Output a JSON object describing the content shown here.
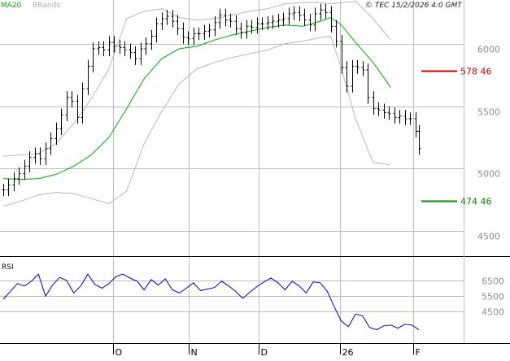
{
  "header": {
    "legend": [
      {
        "label": "MA20",
        "color": "#00aa00"
      },
      {
        "label": "BBands",
        "color": "#aaaaaa"
      }
    ],
    "timestamp": "© TEC 15/2/2026 4:0 GMT"
  },
  "colors": {
    "background": "#ffffff",
    "grid": "#bdbdbd",
    "price_bar": "#000000",
    "ma20": "#00aa00",
    "bbands": "#b8b8b8",
    "rsi": "#0000cc",
    "resistance": "#cc0000",
    "support": "#008800"
  },
  "chart_data": [
    {
      "type": "ohlc",
      "name": "price",
      "ylim": [
        4300,
        6350
      ],
      "ytick_labels": [
        "4500",
        "5000",
        "5500",
        "6000"
      ],
      "x_labels": [
        "O",
        "N",
        "D",
        "26",
        "F"
      ],
      "ma20": [
        [
          0,
          4920
        ],
        [
          10,
          4915
        ],
        [
          20,
          4920
        ],
        [
          30,
          4955
        ],
        [
          40,
          5020
        ],
        [
          50,
          5110
        ],
        [
          60,
          5250
        ],
        [
          70,
          5480
        ],
        [
          80,
          5720
        ],
        [
          90,
          5880
        ],
        [
          100,
          5960
        ],
        [
          110,
          5980
        ],
        [
          120,
          6030
        ],
        [
          130,
          6070
        ],
        [
          140,
          6100
        ],
        [
          150,
          6130
        ],
        [
          160,
          6150
        ],
        [
          170,
          6140
        ],
        [
          180,
          6180
        ],
        [
          186,
          6210
        ],
        [
          192,
          6150
        ],
        [
          200,
          6010
        ],
        [
          210,
          5850
        ],
        [
          220,
          5650
        ]
      ],
      "bb_upper": [
        [
          0,
          5100
        ],
        [
          10,
          5110
        ],
        [
          20,
          5120
        ],
        [
          30,
          5200
        ],
        [
          40,
          5360
        ],
        [
          50,
          5560
        ],
        [
          60,
          5800
        ],
        [
          70,
          6200
        ],
        [
          80,
          6260
        ],
        [
          90,
          6280
        ],
        [
          100,
          6210
        ],
        [
          110,
          6190
        ],
        [
          120,
          6200
        ],
        [
          130,
          6230
        ],
        [
          140,
          6260
        ],
        [
          150,
          6280
        ],
        [
          160,
          6320
        ],
        [
          170,
          6330
        ],
        [
          180,
          6330
        ],
        [
          186,
          6320
        ],
        [
          192,
          6330
        ],
        [
          200,
          6340
        ],
        [
          210,
          6200
        ],
        [
          220,
          6030
        ]
      ],
      "bb_lower": [
        [
          0,
          4700
        ],
        [
          10,
          4740
        ],
        [
          20,
          4790
        ],
        [
          30,
          4810
        ],
        [
          40,
          4800
        ],
        [
          50,
          4760
        ],
        [
          60,
          4720
        ],
        [
          70,
          4820
        ],
        [
          80,
          5200
        ],
        [
          90,
          5460
        ],
        [
          100,
          5680
        ],
        [
          110,
          5800
        ],
        [
          120,
          5850
        ],
        [
          130,
          5890
        ],
        [
          140,
          5920
        ],
        [
          150,
          5950
        ],
        [
          160,
          6000
        ],
        [
          170,
          6020
        ],
        [
          180,
          6050
        ],
        [
          186,
          6060
        ],
        [
          192,
          5800
        ],
        [
          200,
          5400
        ],
        [
          210,
          5050
        ],
        [
          220,
          5030
        ]
      ],
      "price": [
        [
          0,
          4830
        ],
        [
          3,
          4870
        ],
        [
          6,
          4920
        ],
        [
          9,
          4960
        ],
        [
          12,
          5020
        ],
        [
          15,
          5090
        ],
        [
          18,
          5120
        ],
        [
          21,
          5080
        ],
        [
          24,
          5160
        ],
        [
          27,
          5240
        ],
        [
          30,
          5320
        ],
        [
          33,
          5430
        ],
        [
          36,
          5570
        ],
        [
          39,
          5540
        ],
        [
          42,
          5410
        ],
        [
          45,
          5640
        ],
        [
          48,
          5820
        ],
        [
          51,
          5960
        ],
        [
          54,
          5970
        ],
        [
          57,
          5950
        ],
        [
          60,
          6010
        ],
        [
          63,
          5980
        ],
        [
          66,
          5970
        ],
        [
          69,
          5950
        ],
        [
          72,
          5930
        ],
        [
          75,
          5880
        ],
        [
          78,
          5960
        ],
        [
          81,
          6000
        ],
        [
          84,
          6060
        ],
        [
          87,
          6160
        ],
        [
          90,
          6200
        ],
        [
          93,
          6220
        ],
        [
          96,
          6180
        ],
        [
          99,
          6120
        ],
        [
          102,
          6050
        ],
        [
          105,
          6040
        ],
        [
          108,
          6080
        ],
        [
          111,
          6080
        ],
        [
          114,
          6100
        ],
        [
          117,
          6110
        ],
        [
          120,
          6170
        ],
        [
          123,
          6230
        ],
        [
          126,
          6190
        ],
        [
          129,
          6180
        ],
        [
          132,
          6120
        ],
        [
          135,
          6090
        ],
        [
          138,
          6140
        ],
        [
          141,
          6130
        ],
        [
          144,
          6160
        ],
        [
          147,
          6160
        ],
        [
          150,
          6170
        ],
        [
          153,
          6180
        ],
        [
          156,
          6190
        ],
        [
          159,
          6200
        ],
        [
          162,
          6240
        ],
        [
          165,
          6250
        ],
        [
          168,
          6230
        ],
        [
          171,
          6190
        ],
        [
          174,
          6150
        ],
        [
          177,
          6240
        ],
        [
          180,
          6270
        ],
        [
          183,
          6250
        ],
        [
          186,
          6140
        ],
        [
          189,
          6020
        ],
        [
          192,
          5810
        ],
        [
          195,
          5660
        ],
        [
          198,
          5820
        ],
        [
          201,
          5810
        ],
        [
          204,
          5790
        ],
        [
          207,
          5570
        ],
        [
          210,
          5480
        ],
        [
          213,
          5470
        ],
        [
          216,
          5450
        ],
        [
          219,
          5440
        ],
        [
          222,
          5410
        ],
        [
          225,
          5420
        ],
        [
          228,
          5400
        ],
        [
          231,
          5400
        ],
        [
          234,
          5300
        ],
        [
          236,
          5160
        ]
      ],
      "target_levels": [
        {
          "label": "578 46",
          "value": 5784.6,
          "color": "#cc0000"
        },
        {
          "label": "474 46",
          "value": 4744.6,
          "color": "#008800"
        }
      ]
    },
    {
      "type": "line",
      "name": "RSI",
      "label": "RSI",
      "ylim": [
        2500,
        8000
      ],
      "ytick_labels": [
        "4500",
        "5500",
        "6500"
      ],
      "values": [
        [
          0,
          5300
        ],
        [
          4,
          5800
        ],
        [
          8,
          6300
        ],
        [
          12,
          6150
        ],
        [
          16,
          6450
        ],
        [
          20,
          6900
        ],
        [
          24,
          5500
        ],
        [
          28,
          6200
        ],
        [
          32,
          6700
        ],
        [
          36,
          6500
        ],
        [
          40,
          5700
        ],
        [
          44,
          6150
        ],
        [
          48,
          6900
        ],
        [
          52,
          6250
        ],
        [
          56,
          6000
        ],
        [
          60,
          6300
        ],
        [
          64,
          6750
        ],
        [
          68,
          6900
        ],
        [
          72,
          6650
        ],
        [
          76,
          6450
        ],
        [
          80,
          5900
        ],
        [
          84,
          6550
        ],
        [
          88,
          6200
        ],
        [
          92,
          6600
        ],
        [
          96,
          5900
        ],
        [
          100,
          5700
        ],
        [
          104,
          6000
        ],
        [
          108,
          6350
        ],
        [
          112,
          5850
        ],
        [
          116,
          5950
        ],
        [
          120,
          6050
        ],
        [
          124,
          6450
        ],
        [
          128,
          6150
        ],
        [
          132,
          5800
        ],
        [
          136,
          5350
        ],
        [
          140,
          5750
        ],
        [
          144,
          6100
        ],
        [
          148,
          6400
        ],
        [
          152,
          6650
        ],
        [
          156,
          6350
        ],
        [
          160,
          5900
        ],
        [
          164,
          6450
        ],
        [
          168,
          6150
        ],
        [
          172,
          5700
        ],
        [
          176,
          6400
        ],
        [
          180,
          6350
        ],
        [
          184,
          5800
        ],
        [
          188,
          4800
        ],
        [
          192,
          3900
        ],
        [
          196,
          3550
        ],
        [
          200,
          4350
        ],
        [
          204,
          4250
        ],
        [
          208,
          3500
        ],
        [
          212,
          3350
        ],
        [
          216,
          3600
        ],
        [
          220,
          3650
        ],
        [
          224,
          3450
        ],
        [
          228,
          3700
        ],
        [
          232,
          3650
        ],
        [
          236,
          3350
        ]
      ]
    }
  ]
}
